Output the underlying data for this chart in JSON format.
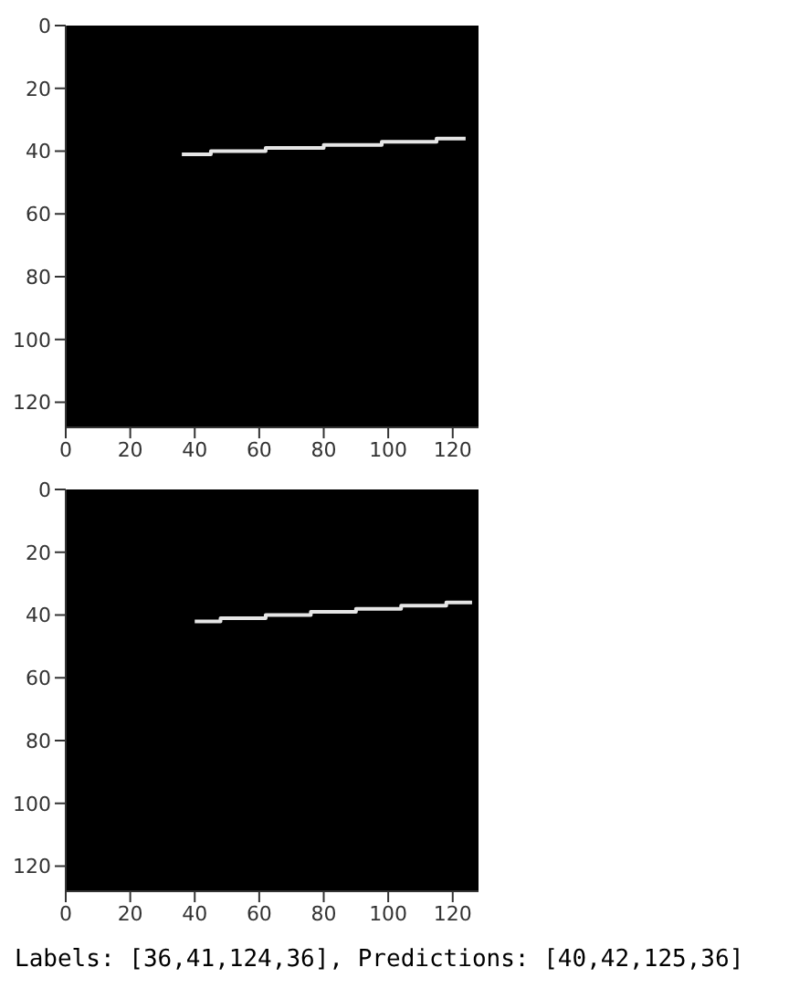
{
  "chart_data": [
    {
      "type": "step",
      "x": [
        36,
        45,
        62,
        80,
        98,
        115,
        124
      ],
      "values": [
        41,
        40,
        39,
        38,
        37,
        36,
        36
      ],
      "color": "#e6e6e6",
      "xlim": [
        0,
        128
      ],
      "ylim": [
        128,
        0
      ],
      "xticks": [
        0,
        20,
        40,
        60,
        80,
        100,
        120
      ],
      "yticks": [
        0,
        20,
        40,
        60,
        80,
        100,
        120
      ],
      "grid": false,
      "marker": "none"
    },
    {
      "type": "step",
      "x": [
        40,
        48,
        62,
        76,
        90,
        104,
        118,
        126
      ],
      "values": [
        42,
        41,
        40,
        39,
        38,
        37,
        36,
        36
      ],
      "color": "#e6e6e6",
      "xlim": [
        0,
        128
      ],
      "ylim": [
        128,
        0
      ],
      "xticks": [
        0,
        20,
        40,
        60,
        80,
        100,
        120
      ],
      "yticks": [
        0,
        20,
        40,
        60,
        80,
        100,
        120
      ],
      "grid": false,
      "marker": "none",
      "annotations": [
        "Labels: [36,41,124,36], Predictions: [40,42,125,36]"
      ]
    }
  ]
}
